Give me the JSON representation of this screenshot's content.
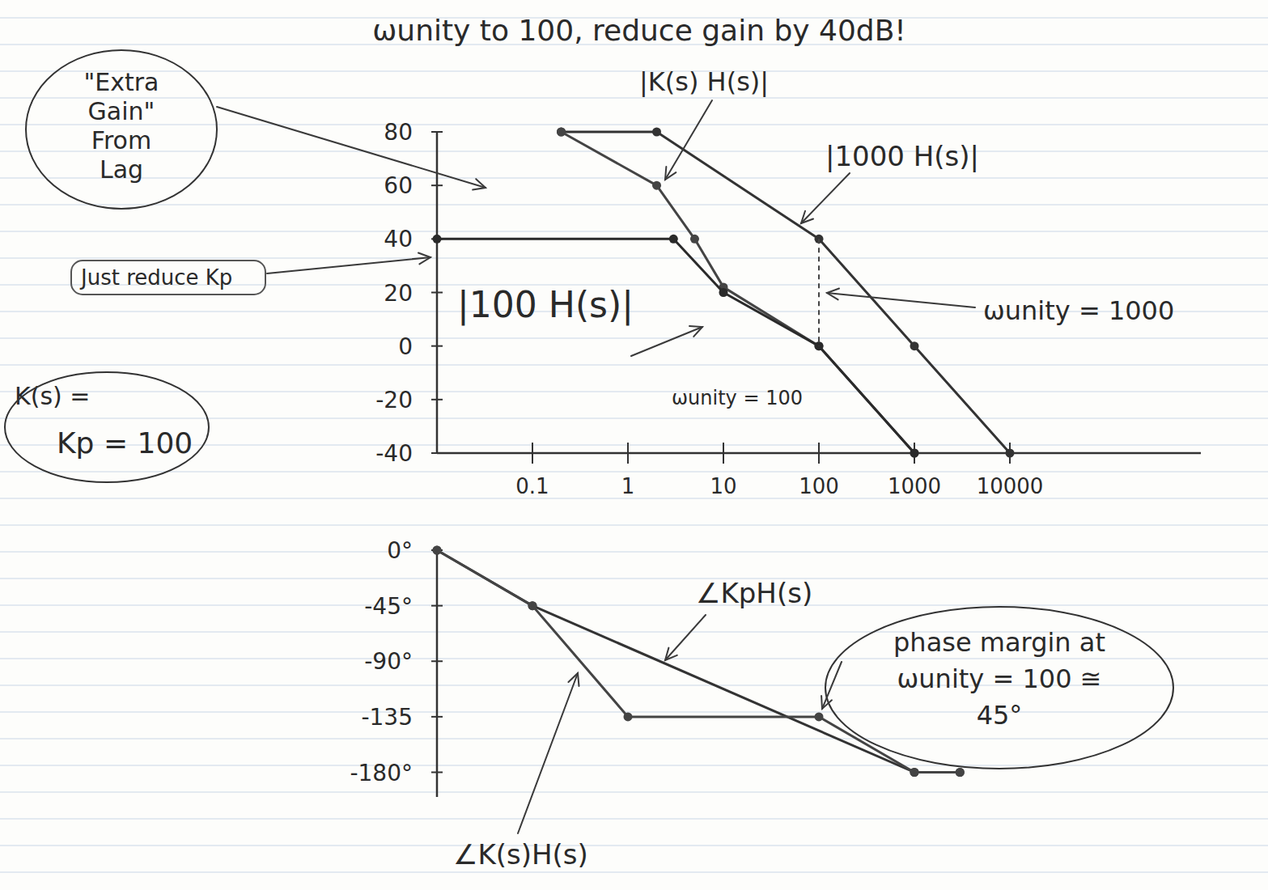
{
  "chart_data": [
    {
      "type": "line",
      "title": "ωunity to 100, reduce gain by 40dB!",
      "log": "x",
      "xlim": [
        0.01,
        1000000
      ],
      "xticks": [
        0.1,
        1,
        10,
        100,
        1000,
        10000
      ],
      "ylim": [
        -40,
        80
      ],
      "yticks": [
        -40,
        -20,
        0,
        20,
        40,
        60,
        80
      ],
      "grid": false,
      "annotations": [
        "\"Extra Gain\" From Lag",
        "Just reduce Kp",
        "K(s) =",
        "Kp = 100",
        "ωunity = 1000",
        "ωunity = 100"
      ],
      "series": [
        {
          "name": "|1000 H(s)|",
          "color": "#333333",
          "marker": "circle",
          "line_style": "solid",
          "x": [
            0.2,
            2,
            100,
            1000,
            10000
          ],
          "values": [
            80,
            80,
            40,
            0,
            -40
          ]
        },
        {
          "name": "|K(s) H(s)|",
          "color": "#444444",
          "marker": "circle",
          "line_style": "solid",
          "x": [
            0.2,
            2,
            5,
            10,
            100,
            1000
          ],
          "values": [
            80,
            60,
            40,
            22,
            0,
            -40
          ]
        },
        {
          "name": "|100 H(s)|",
          "color": "#2a2a2a",
          "marker": "circle",
          "line_style": "solid",
          "x": [
            0.01,
            3,
            10,
            100,
            1000
          ],
          "values": [
            40,
            40,
            20,
            0,
            -40
          ]
        }
      ]
    },
    {
      "type": "line",
      "log": "x",
      "xlim": [
        0.01,
        1000000
      ],
      "ylim": [
        -200,
        0
      ],
      "yticks": [
        {
          "value": 0,
          "label": "0°"
        },
        {
          "value": -45,
          "label": "-45°"
        },
        {
          "value": -90,
          "label": "-90°"
        },
        -135,
        {
          "value": -180,
          "label": "-180°"
        }
      ],
      "tick_labels": "y",
      "grid": false,
      "annotations": [
        "phase margin at ωunity = 100 ≅ 45°"
      ],
      "series": [
        {
          "name": "∠KpH(s)",
          "color": "#333333",
          "marker": "circle",
          "line_style": "solid",
          "x": [
            0.01,
            0.1,
            1000,
            3000
          ],
          "values": [
            0,
            -45,
            -180,
            -180
          ]
        },
        {
          "name": "∠K(s)H(s)",
          "color": "#444444",
          "marker": "circle",
          "line_style": "solid",
          "x": [
            0.01,
            0.1,
            1,
            100,
            1000,
            3000
          ],
          "values": [
            0,
            -45,
            -135,
            -135,
            -180,
            -180
          ]
        }
      ]
    }
  ]
}
